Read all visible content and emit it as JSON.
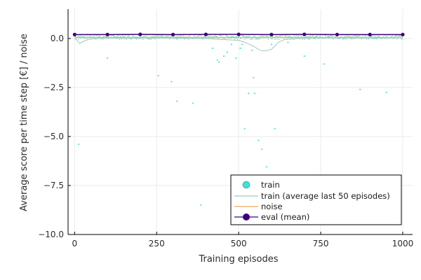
{
  "chart_data": {
    "type": "scatter",
    "xlabel": "Training episodes",
    "ylabel": "Average score per time step [€] / noise",
    "xlim": [
      -20,
      1030
    ],
    "ylim": [
      -10,
      1.5
    ],
    "xticks": [
      0,
      250,
      500,
      750,
      1000
    ],
    "xtick_labels": [
      "0",
      "250",
      "500",
      "750",
      "1000"
    ],
    "yticks": [
      -10,
      -7.5,
      -5,
      -2.5,
      0
    ],
    "ytick_labels": [
      "−10.0",
      "−7.5",
      "−5.0",
      "−2.5",
      "0.0"
    ],
    "grid": true,
    "legend_position": "bottom-right",
    "colors": {
      "train": "#40E0D0",
      "train_avg": "#9CC9C0",
      "noise": "#F2A65A",
      "noise_dots": "#9BD060",
      "eval": "#3F007D",
      "axis": "#000000",
      "grid": "#ebebeb"
    },
    "series": [
      {
        "name": "train",
        "kind": "scatter",
        "outliers": {
          "x": [
            12,
            100,
            255,
            295,
            312,
            360,
            385,
            420,
            435,
            440,
            455,
            465,
            478,
            492,
            505,
            510,
            518,
            530,
            540,
            545,
            548,
            560,
            570,
            585,
            600,
            610,
            650,
            700,
            760,
            870,
            950
          ],
          "y": [
            -5.4,
            -1.0,
            -1.9,
            -2.2,
            -3.2,
            -3.3,
            -8.5,
            -0.5,
            -1.1,
            -1.2,
            -0.9,
            -0.7,
            -0.3,
            -1.0,
            -0.5,
            -0.3,
            -4.6,
            -2.8,
            -0.6,
            -2.0,
            -2.8,
            -5.2,
            -5.65,
            -6.55,
            -0.3,
            -4.6,
            -0.2,
            -0.9,
            -1.3,
            -2.6,
            -2.75
          ]
        },
        "band": {
          "low": -0.05,
          "high": 0.2
        }
      },
      {
        "name": "train (average last 50 episodes)",
        "kind": "line",
        "x": [
          0,
          8,
          15,
          30,
          50,
          100,
          200,
          300,
          400,
          450,
          500,
          520,
          540,
          560,
          570,
          580,
          590,
          600,
          610,
          620,
          640,
          700,
          800,
          900,
          1000
        ],
        "y": [
          0.0,
          -0.1,
          -0.25,
          -0.12,
          -0.02,
          0.02,
          0.03,
          0.02,
          0.0,
          -0.05,
          -0.1,
          -0.2,
          -0.35,
          -0.55,
          -0.62,
          -0.62,
          -0.6,
          -0.55,
          -0.4,
          -0.2,
          -0.05,
          0.02,
          0.03,
          0.03,
          0.04
        ]
      },
      {
        "name": "noise",
        "kind": "line",
        "x": [
          0,
          1000
        ],
        "y": [
          0.05,
          0.05
        ]
      },
      {
        "name": "eval (mean)",
        "kind": "line+markers",
        "x": [
          0,
          100,
          200,
          300,
          400,
          500,
          600,
          700,
          800,
          900,
          1000
        ],
        "y": [
          0.2,
          0.2,
          0.21,
          0.2,
          0.21,
          0.21,
          0.2,
          0.21,
          0.2,
          0.2,
          0.2
        ]
      }
    ]
  }
}
